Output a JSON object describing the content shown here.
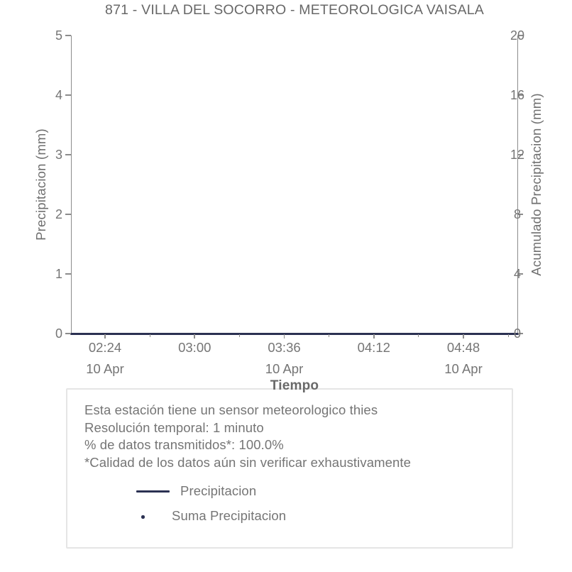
{
  "title": "871 - VILLA DEL SOCORRO - METEOROLOGICA VAISALA",
  "chart_data": {
    "type": "line",
    "title": "871 - VILLA DEL SOCORRO - METEOROLOGICA VAISALA",
    "xlabel": "Tiempo",
    "grid": false,
    "x_axis": {
      "ticks": [
        {
          "time": "02:24",
          "date": "10 Apr"
        },
        {
          "time": "03:00",
          "date": ""
        },
        {
          "time": "03:36",
          "date": "10 Apr"
        },
        {
          "time": "04:12",
          "date": ""
        },
        {
          "time": "04:48",
          "date": "10 Apr"
        }
      ]
    },
    "left_axis": {
      "label": "Precipitacion (mm)",
      "ticks": [
        0,
        1,
        2,
        3,
        4,
        5
      ],
      "range": [
        0,
        5
      ]
    },
    "right_axis": {
      "label": "Acumulado Precipitacion (mm)",
      "ticks": [
        0,
        4,
        8,
        12,
        16,
        20
      ],
      "range": [
        0,
        20
      ]
    },
    "series": [
      {
        "name": "Precipitacion",
        "marker": "line",
        "color": "#2b3152",
        "constant_value": 0,
        "description": "flat line at 0 mm across the entire visible time range"
      },
      {
        "name": "Suma Precipitacion",
        "marker": "dot",
        "color": "#2b3152",
        "description": "no visible data points above 0"
      }
    ],
    "legend_position": "annotation box below plot"
  },
  "legend_box": {
    "info_lines": [
      "Esta estación tiene un sensor meteorologico thies",
      "Resolución temporal: 1 minuto",
      "% de datos transmitidos*: 100.0%",
      "*Calidad de los datos aún sin verificar exhaustivamente"
    ],
    "entries": [
      {
        "label": "Precipitacion",
        "marker": "line"
      },
      {
        "label": "Suma Precipitacion",
        "marker": "dot"
      }
    ]
  },
  "colors": {
    "accent_navy": "#2b3152",
    "text_gray": "#757575",
    "axis_gray": "#8c8c8c",
    "box_border": "#e5e5e5"
  }
}
